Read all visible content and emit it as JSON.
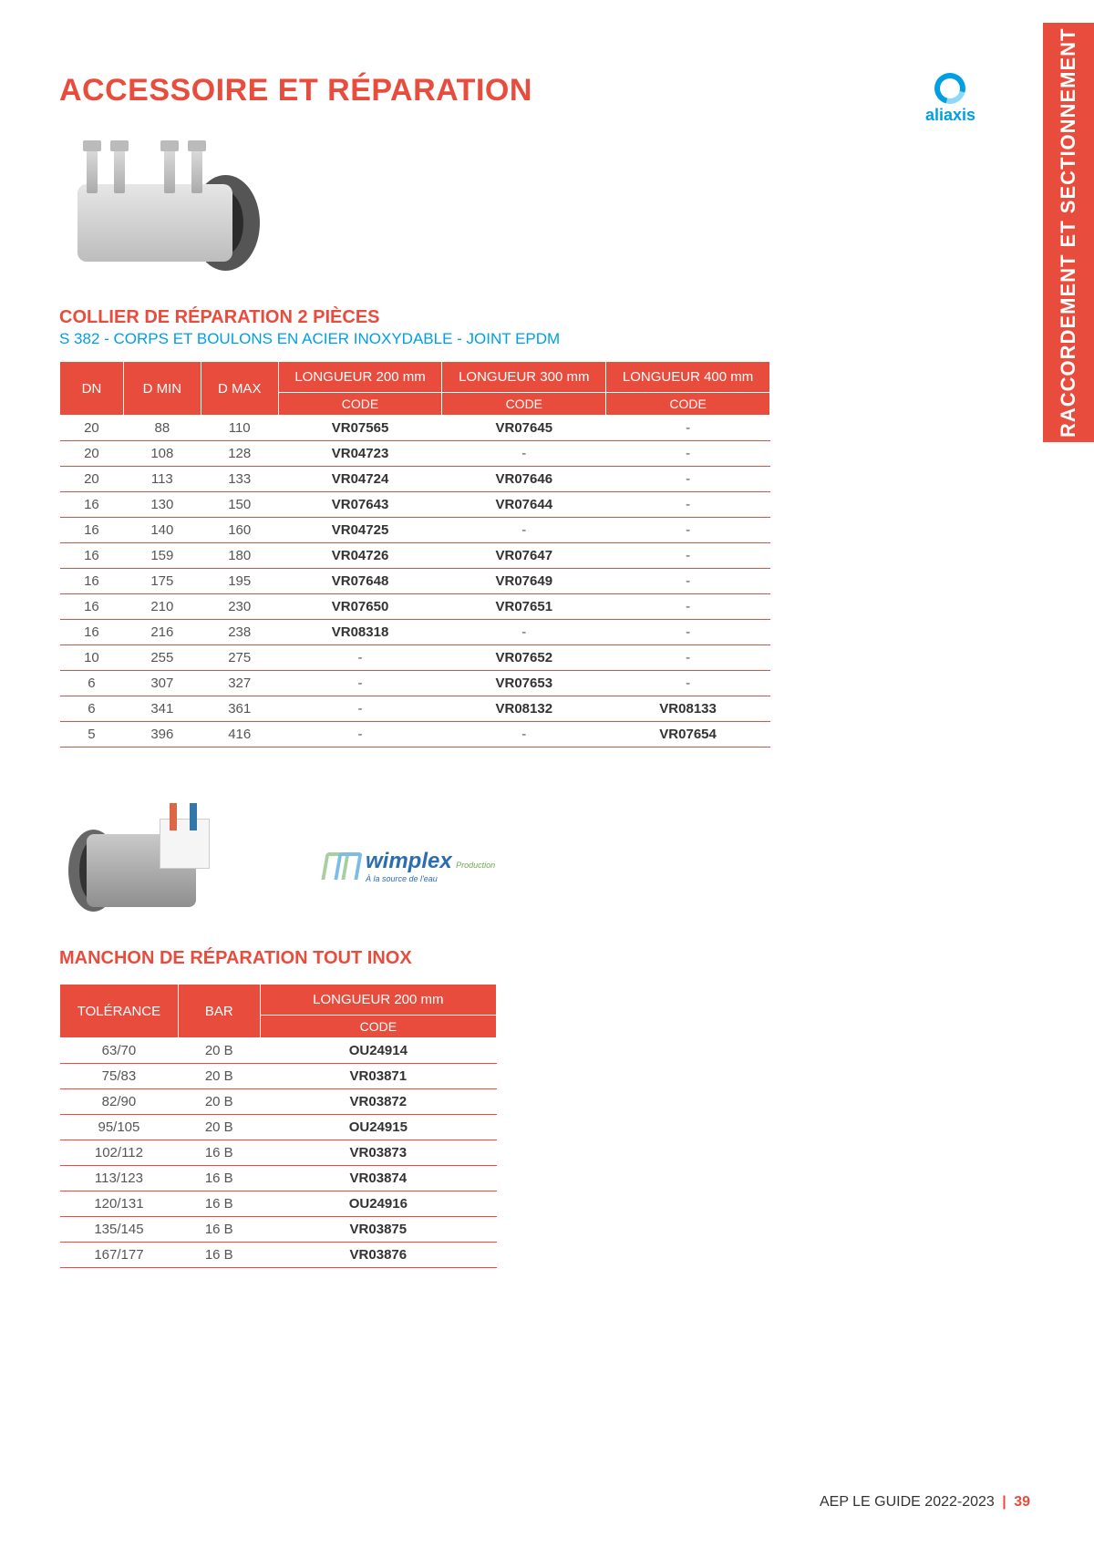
{
  "sideTab": "RACCORDEMENT ET SECTIONNEMENT",
  "brand": "aliaxis",
  "pageTitle": "ACCESSOIRE ET RÉPARATION",
  "section1": {
    "title": "COLLIER DE RÉPARATION 2 PIÈCES",
    "subtitle": "S 382 - CORPS ET BOULONS EN ACIER INOXYDABLE - JOINT EPDM",
    "headers": {
      "dn": "DN",
      "dmin": "D MIN",
      "dmax": "D MAX",
      "l200": "LONGUEUR 200 mm",
      "l300": "LONGUEUR 300 mm",
      "l400": "LONGUEUR 400 mm",
      "code": "CODE"
    },
    "rows": [
      {
        "dn": "20",
        "dmin": "88",
        "dmax": "110",
        "c200": "VR07565",
        "c300": "VR07645",
        "c400": "-"
      },
      {
        "dn": "20",
        "dmin": "108",
        "dmax": "128",
        "c200": "VR04723",
        "c300": "-",
        "c400": "-"
      },
      {
        "dn": "20",
        "dmin": "113",
        "dmax": "133",
        "c200": "VR04724",
        "c300": "VR07646",
        "c400": "-"
      },
      {
        "dn": "16",
        "dmin": "130",
        "dmax": "150",
        "c200": "VR07643",
        "c300": "VR07644",
        "c400": "-"
      },
      {
        "dn": "16",
        "dmin": "140",
        "dmax": "160",
        "c200": "VR04725",
        "c300": "-",
        "c400": "-"
      },
      {
        "dn": "16",
        "dmin": "159",
        "dmax": "180",
        "c200": "VR04726",
        "c300": "VR07647",
        "c400": "-"
      },
      {
        "dn": "16",
        "dmin": "175",
        "dmax": "195",
        "c200": "VR07648",
        "c300": "VR07649",
        "c400": "-"
      },
      {
        "dn": "16",
        "dmin": "210",
        "dmax": "230",
        "c200": "VR07650",
        "c300": "VR07651",
        "c400": "-"
      },
      {
        "dn": "16",
        "dmin": "216",
        "dmax": "238",
        "c200": "VR08318",
        "c300": "-",
        "c400": "-"
      },
      {
        "dn": "10",
        "dmin": "255",
        "dmax": "275",
        "c200": "-",
        "c300": "VR07652",
        "c400": "-"
      },
      {
        "dn": "6",
        "dmin": "307",
        "dmax": "327",
        "c200": "-",
        "c300": "VR07653",
        "c400": "-"
      },
      {
        "dn": "6",
        "dmin": "341",
        "dmax": "361",
        "c200": "-",
        "c300": "VR08132",
        "c400": "VR08133"
      },
      {
        "dn": "5",
        "dmin": "396",
        "dmax": "416",
        "c200": "-",
        "c300": "-",
        "c400": "VR07654"
      }
    ]
  },
  "wimplex": {
    "name": "wimplex",
    "sub": "Production",
    "tag": "À la source de l'eau"
  },
  "section2": {
    "title": "MANCHON DE RÉPARATION TOUT INOX",
    "headers": {
      "tol": "TOLÉRANCE",
      "bar": "BAR",
      "l200": "LONGUEUR 200 mm",
      "code": "CODE"
    },
    "rows": [
      {
        "tol": "63/70",
        "bar": "20 B",
        "code": "OU24914"
      },
      {
        "tol": "75/83",
        "bar": "20 B",
        "code": "VR03871"
      },
      {
        "tol": "82/90",
        "bar": "20 B",
        "code": "VR03872"
      },
      {
        "tol": "95/105",
        "bar": "20 B",
        "code": "OU24915"
      },
      {
        "tol": "102/112",
        "bar": "16 B",
        "code": "VR03873"
      },
      {
        "tol": "113/123",
        "bar": "16 B",
        "code": "VR03874"
      },
      {
        "tol": "120/131",
        "bar": "16 B",
        "code": "OU24916"
      },
      {
        "tol": "135/145",
        "bar": "16 B",
        "code": "VR03875"
      },
      {
        "tol": "167/177",
        "bar": "16 B",
        "code": "VR03876"
      }
    ]
  },
  "footer": {
    "text": "AEP LE GUIDE 2022-2023",
    "page": "39"
  },
  "colors": {
    "accent": "#e84c3d",
    "brand": "#009fe3",
    "text": "#333333",
    "background": "#ffffff"
  }
}
